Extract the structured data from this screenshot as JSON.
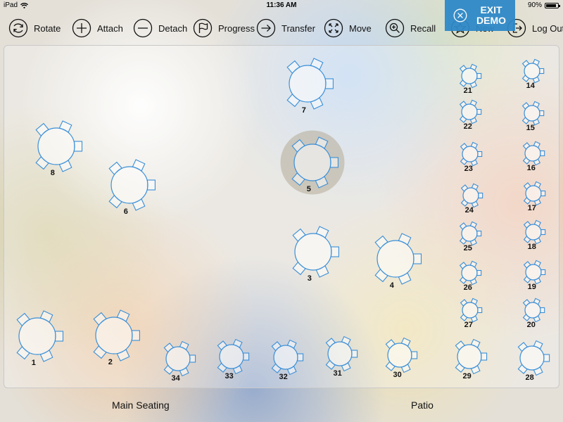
{
  "status": {
    "carrier": "iPad",
    "time": "11:36 AM",
    "battery": "90%",
    "battery_level": 0.9
  },
  "toolbar": {
    "rotate": "Rotate",
    "attach": "Attach",
    "detach": "Detach",
    "progress": "Progress",
    "transfer": "Transfer",
    "move": "Move",
    "recall": "Recall",
    "new": "New",
    "logout": "Log Out"
  },
  "exit_demo": {
    "label": "EXIT\nDEMO"
  },
  "colors": {
    "table_stroke": "#3a8fd8",
    "selection": "#b4ab98",
    "exit_bg": "#2f89c8"
  },
  "floor": {
    "selected_table": "5",
    "tables": [
      {
        "number": "1",
        "size": "large"
      },
      {
        "number": "2",
        "size": "large"
      },
      {
        "number": "3",
        "size": "large"
      },
      {
        "number": "4",
        "size": "large"
      },
      {
        "number": "5",
        "size": "large"
      },
      {
        "number": "6",
        "size": "large"
      },
      {
        "number": "7",
        "size": "large"
      },
      {
        "number": "8",
        "size": "large"
      },
      {
        "number": "14",
        "size": "small"
      },
      {
        "number": "15",
        "size": "small"
      },
      {
        "number": "16",
        "size": "small"
      },
      {
        "number": "17",
        "size": "small"
      },
      {
        "number": "18",
        "size": "small"
      },
      {
        "number": "19",
        "size": "small"
      },
      {
        "number": "20",
        "size": "small"
      },
      {
        "number": "21",
        "size": "small"
      },
      {
        "number": "22",
        "size": "small"
      },
      {
        "number": "23",
        "size": "small"
      },
      {
        "number": "24",
        "size": "small"
      },
      {
        "number": "25",
        "size": "small"
      },
      {
        "number": "26",
        "size": "small"
      },
      {
        "number": "27",
        "size": "small"
      },
      {
        "number": "28",
        "size": "medium"
      },
      {
        "number": "29",
        "size": "medium"
      },
      {
        "number": "30",
        "size": "medium"
      },
      {
        "number": "31",
        "size": "medium"
      },
      {
        "number": "32",
        "size": "medium"
      },
      {
        "number": "33",
        "size": "medium"
      },
      {
        "number": "34",
        "size": "medium"
      }
    ]
  },
  "sections": {
    "main": "Main Seating",
    "patio": "Patio"
  }
}
